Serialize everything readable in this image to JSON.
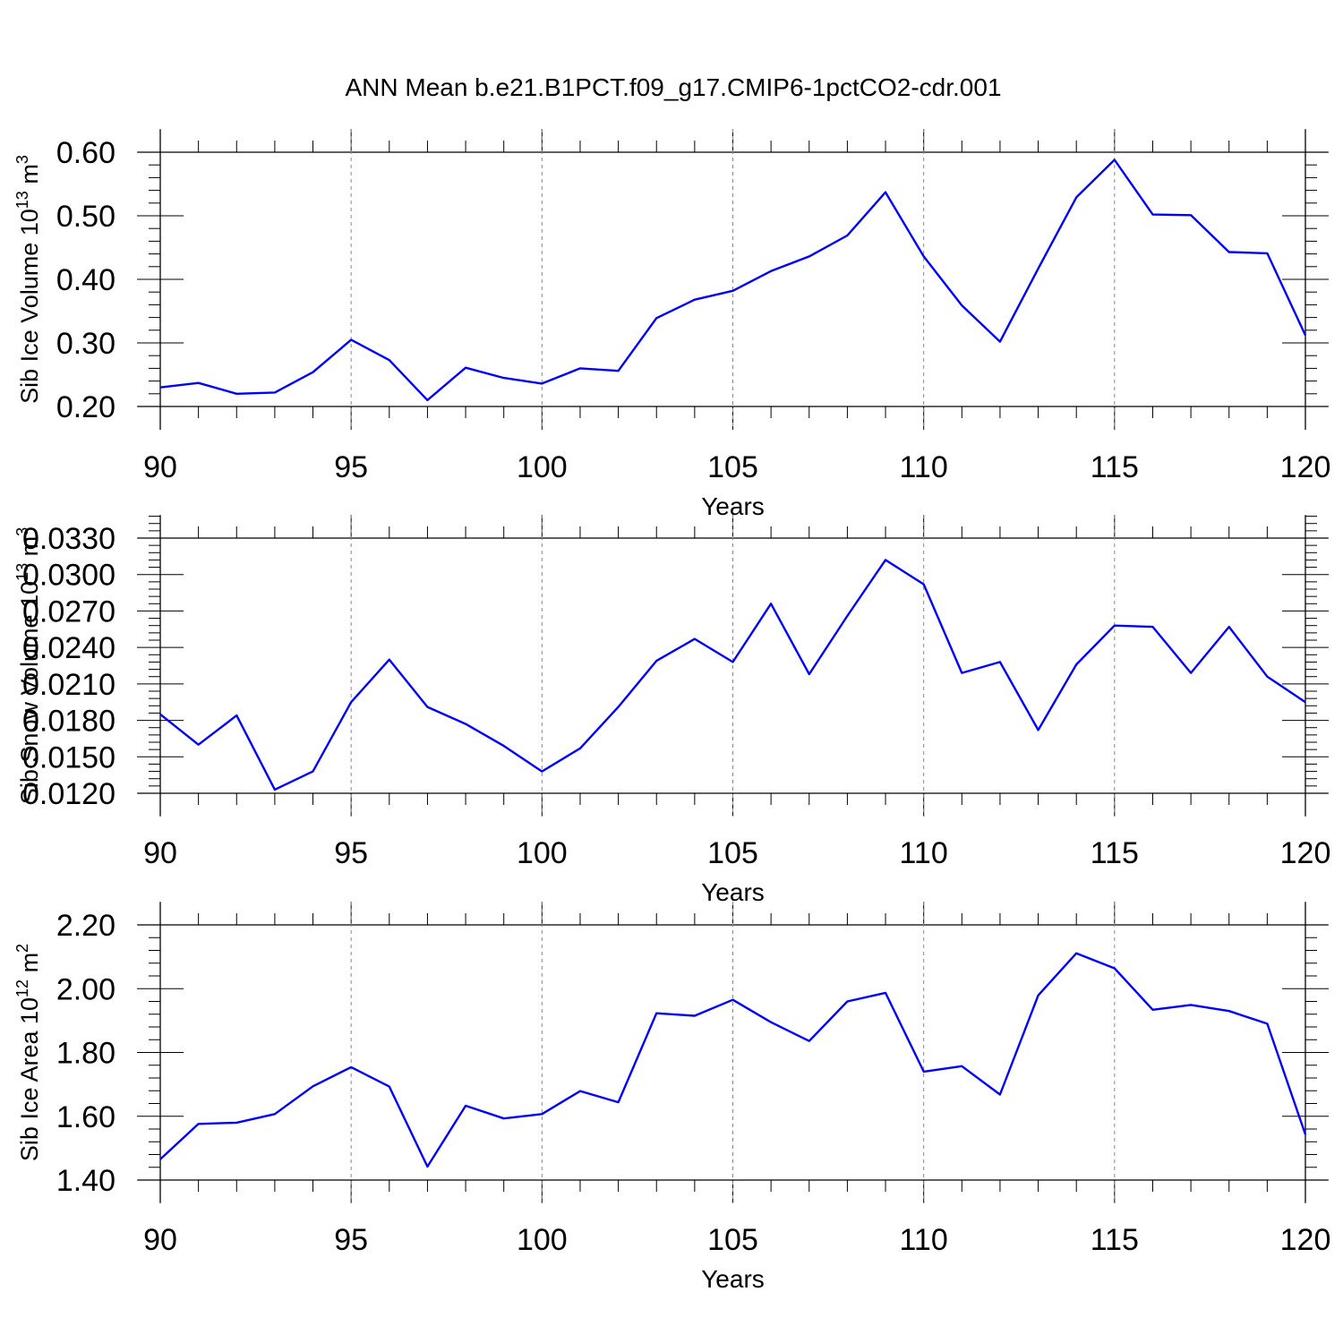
{
  "title": "ANN Mean b.e21.B1PCT.f09_g17.CMIP6-1pctCO2-cdr.001",
  "colors": {
    "line": "#0000ff",
    "frame": "#000000",
    "grid": "#888888"
  },
  "chart_data": [
    {
      "type": "line",
      "ylabel": {
        "text": "Sib Ice Volume 10",
        "sup": "13",
        "unit": " m",
        "unit_sup": "3"
      },
      "xlabel": "Years",
      "xlim": [
        90,
        120
      ],
      "ylim": [
        0.2,
        0.6
      ],
      "x_ticks": [
        "90",
        "95",
        "100",
        "105",
        "110",
        "115",
        "120"
      ],
      "y_ticks": [
        "0.20",
        "0.30",
        "0.40",
        "0.50",
        "0.60"
      ],
      "x": [
        90,
        91,
        92,
        93,
        94,
        95,
        96,
        97,
        98,
        99,
        100,
        101,
        102,
        103,
        104,
        105,
        106,
        107,
        108,
        109,
        110,
        111,
        112,
        113,
        114,
        115,
        116,
        117,
        118,
        119,
        120
      ],
      "values": [
        0.23,
        0.237,
        0.22,
        0.222,
        0.254,
        0.305,
        0.273,
        0.21,
        0.261,
        0.245,
        0.236,
        0.26,
        0.256,
        0.339,
        0.368,
        0.382,
        0.413,
        0.436,
        0.469,
        0.537,
        0.436,
        0.359,
        0.302,
        0.417,
        0.529,
        0.588,
        0.502,
        0.501,
        0.443,
        0.441,
        0.312
      ]
    },
    {
      "type": "line",
      "ylabel": {
        "text": "Sib Snow Volume 10",
        "sup": "13",
        "unit": " m",
        "unit_sup": "3"
      },
      "xlabel": "Years",
      "xlim": [
        90,
        120
      ],
      "ylim": [
        0.012,
        0.033
      ],
      "y_axis_max": 0.0349,
      "x_ticks": [
        "90",
        "95",
        "100",
        "105",
        "110",
        "115",
        "120"
      ],
      "y_ticks": [
        "0.0120",
        "0.0150",
        "0.0180",
        "0.0210",
        "0.0240",
        "0.0270",
        "0.0300",
        "0.0330"
      ],
      "x": [
        90,
        91,
        92,
        93,
        94,
        95,
        96,
        97,
        98,
        99,
        100,
        101,
        102,
        103,
        104,
        105,
        106,
        107,
        108,
        109,
        110,
        111,
        112,
        113,
        114,
        115,
        116,
        117,
        118,
        119,
        120
      ],
      "values": [
        0.0185,
        0.016,
        0.0184,
        0.0123,
        0.0138,
        0.0195,
        0.023,
        0.0191,
        0.0177,
        0.0159,
        0.0138,
        0.0157,
        0.0191,
        0.0229,
        0.0247,
        0.0228,
        0.0276,
        0.0218,
        0.0266,
        0.0312,
        0.0292,
        0.0219,
        0.0228,
        0.0172,
        0.0226,
        0.0258,
        0.0257,
        0.0219,
        0.0257,
        0.0216,
        0.0195
      ]
    },
    {
      "type": "line",
      "ylabel": {
        "text": "Sib Ice Area 10",
        "sup": "12",
        "unit": " m",
        "unit_sup": "2"
      },
      "xlabel": "Years",
      "xlim": [
        90,
        120
      ],
      "ylim": [
        1.4,
        2.2
      ],
      "x_ticks": [
        "90",
        "95",
        "100",
        "105",
        "110",
        "115",
        "120"
      ],
      "y_ticks": [
        "1.40",
        "1.60",
        "1.80",
        "2.00",
        "2.20"
      ],
      "x": [
        90,
        91,
        92,
        93,
        94,
        95,
        96,
        97,
        98,
        99,
        100,
        101,
        102,
        103,
        104,
        105,
        106,
        107,
        108,
        109,
        110,
        111,
        112,
        113,
        114,
        115,
        116,
        117,
        118,
        119,
        120
      ],
      "values": [
        1.465,
        1.576,
        1.58,
        1.607,
        1.694,
        1.754,
        1.693,
        1.442,
        1.633,
        1.593,
        1.607,
        1.679,
        1.644,
        1.923,
        1.915,
        1.965,
        1.895,
        1.836,
        1.96,
        1.987,
        1.74,
        1.757,
        1.668,
        1.979,
        2.111,
        2.064,
        1.934,
        1.949,
        1.93,
        1.89,
        1.543
      ]
    }
  ]
}
